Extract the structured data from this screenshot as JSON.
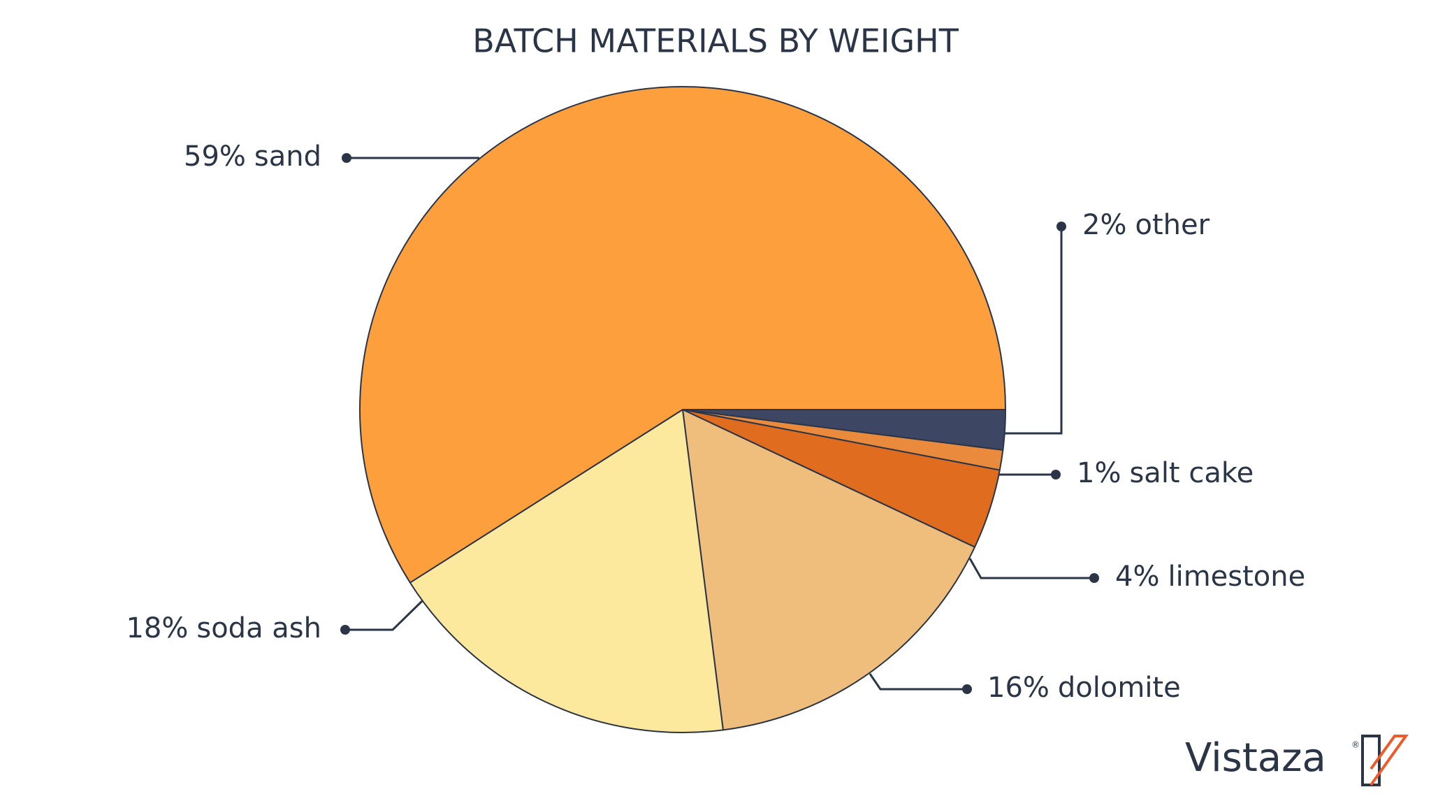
{
  "chart_data": {
    "type": "pie",
    "title": "BATCH MATERIALS BY WEIGHT",
    "categories": [
      "other",
      "salt cake",
      "limestone",
      "dolomite",
      "soda ash",
      "sand"
    ],
    "values": [
      2,
      1,
      4,
      16,
      18,
      59
    ],
    "value_labels": [
      "2%",
      "1%",
      "4%",
      "16%",
      "18%",
      "59%"
    ],
    "colors": [
      "#3d4663",
      "#e98a3c",
      "#e06c1f",
      "#efbd7c",
      "#fde99e",
      "#fd9f3c"
    ]
  },
  "logo": {
    "text": "Vistaza",
    "mark": "®"
  }
}
